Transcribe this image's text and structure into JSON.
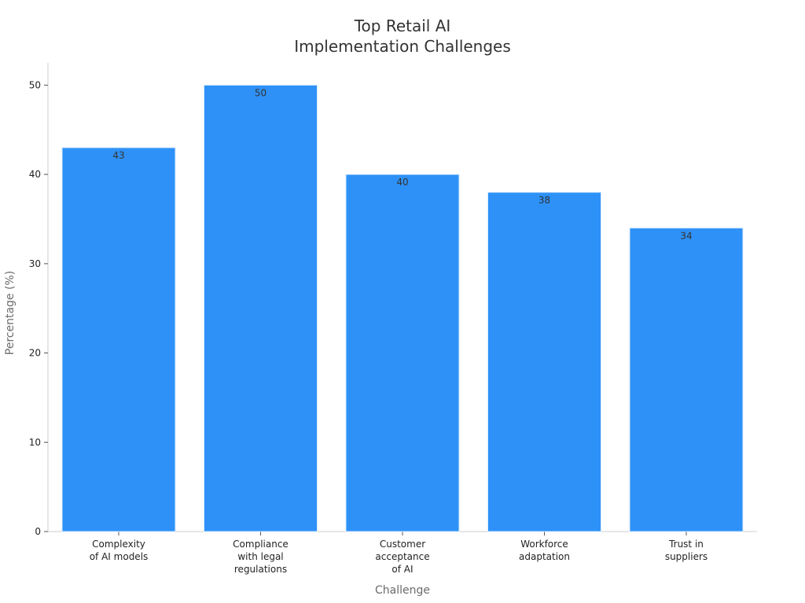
{
  "chart_data": {
    "type": "bar",
    "title": [
      "Top Retail AI",
      "Implementation Challenges"
    ],
    "xlabel": "Challenge",
    "ylabel": "Percentage (%)",
    "categories": [
      [
        "Complexity",
        "of AI models"
      ],
      [
        "Compliance",
        "with legal",
        "regulations"
      ],
      [
        "Customer",
        "acceptance",
        "of AI"
      ],
      [
        "Workforce",
        "adaptation"
      ],
      [
        "Trust in",
        "suppliers"
      ]
    ],
    "values": [
      43,
      50,
      40,
      38,
      34
    ],
    "ylim": [
      0,
      52.5
    ],
    "yticks": [
      0,
      10,
      20,
      30,
      40,
      50
    ],
    "bar_color": "#2e91f7",
    "grid": false,
    "legend": "none"
  }
}
